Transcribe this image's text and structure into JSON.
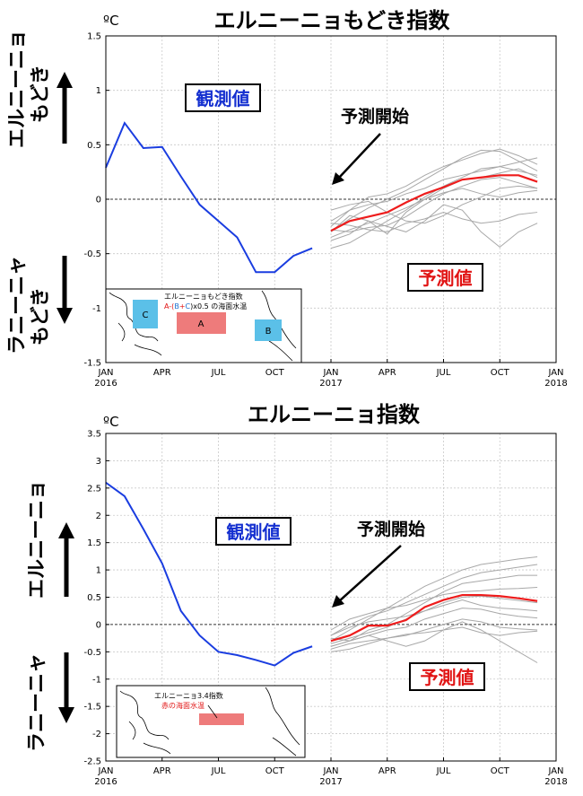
{
  "chart_data": [
    {
      "type": "line",
      "title": "エルニーニョもどき指数",
      "unit": "ºC",
      "ylim": [
        -1.5,
        1.5
      ],
      "yticks": [
        "1.5",
        "1",
        "0.5",
        "0",
        "-0.5",
        "-1",
        "-1.5"
      ],
      "ytick_values": [
        1.5,
        1,
        0.5,
        0,
        -0.5,
        -1,
        -1.5
      ],
      "xlim": [
        0,
        24
      ],
      "xtick_labels": [
        "JAN",
        "APR",
        "JUL",
        "OCT",
        "JAN",
        "APR",
        "JUL",
        "OCT",
        "JAN"
      ],
      "year_labels": [
        "2016",
        "2017",
        "2018"
      ],
      "side_label_top": "エルニーニョ\nもどき",
      "side_label_bottom": "ラニーニャ\nもどき",
      "obs_label": "観測値",
      "forecast_label": "予測値",
      "start_label": "予測開始",
      "grid": true,
      "observed": {
        "x": [
          0,
          1,
          2,
          3,
          4,
          5,
          6,
          7,
          8,
          9,
          10,
          11
        ],
        "y": [
          0.29,
          0.7,
          0.47,
          0.48,
          0.21,
          -0.05,
          -0.2,
          -0.35,
          -0.67,
          -0.67,
          -0.52,
          -0.45
        ],
        "color": "#1a3de0"
      },
      "forecast_mean": {
        "x": [
          12,
          13,
          14,
          15,
          16,
          17,
          18,
          19,
          20,
          21,
          22,
          23
        ],
        "y": [
          -0.29,
          -0.2,
          -0.16,
          -0.12,
          -0.03,
          0.05,
          0.11,
          0.18,
          0.2,
          0.22,
          0.22,
          0.16
        ],
        "color": "#ee1c1c"
      },
      "members": [
        [
          -0.3,
          -0.18,
          -0.08,
          0.0,
          0.08,
          0.18,
          0.28,
          0.38,
          0.45,
          0.44,
          0.35,
          0.26
        ],
        [
          -0.25,
          -0.1,
          0.02,
          0.05,
          0.12,
          0.22,
          0.3,
          0.36,
          0.42,
          0.46,
          0.4,
          0.32
        ],
        [
          -0.35,
          -0.28,
          -0.22,
          -0.15,
          -0.08,
          0.0,
          0.1,
          0.18,
          0.2,
          0.24,
          0.28,
          0.2
        ],
        [
          -0.2,
          -0.1,
          -0.05,
          -0.02,
          0.05,
          0.1,
          0.18,
          0.22,
          0.26,
          0.3,
          0.34,
          0.38
        ],
        [
          -0.28,
          -0.3,
          -0.26,
          -0.24,
          -0.16,
          -0.05,
          0.05,
          0.12,
          0.18,
          0.2,
          0.15,
          0.1
        ],
        [
          -0.1,
          -0.05,
          -0.02,
          -0.12,
          -0.2,
          -0.22,
          -0.15,
          -0.05,
          0.02,
          0.1,
          0.12,
          0.1
        ],
        [
          -0.38,
          -0.32,
          -0.2,
          -0.25,
          -0.3,
          -0.2,
          -0.05,
          -0.1,
          -0.3,
          -0.44,
          -0.3,
          -0.22
        ],
        [
          -0.3,
          -0.15,
          -0.2,
          -0.32,
          -0.12,
          0.0,
          0.06,
          0.1,
          0.05,
          0.02,
          0.06,
          0.08
        ],
        [
          -0.45,
          -0.4,
          -0.3,
          -0.2,
          -0.1,
          0.02,
          0.12,
          0.2,
          0.28,
          0.3,
          0.26,
          0.22
        ],
        [
          -0.22,
          -0.24,
          -0.28,
          -0.3,
          -0.22,
          -0.18,
          -0.12,
          -0.18,
          -0.22,
          -0.2,
          -0.14,
          -0.12
        ]
      ],
      "inset": {
        "title": "エルニーニョもどき指数",
        "formula_parts": [
          "A-(",
          "B",
          "+",
          "C",
          ")x0.5 の海面水温"
        ],
        "boxes": [
          "A",
          "B",
          "C"
        ]
      }
    },
    {
      "type": "line",
      "title": "エルニーニョ指数",
      "unit": "ºC",
      "ylim": [
        -2.5,
        3.5
      ],
      "yticks": [
        "3.5",
        "3",
        "2.5",
        "2",
        "1.5",
        "1",
        "0.5",
        "0",
        "-0.5",
        "-1",
        "-1.5",
        "-2",
        "-2.5"
      ],
      "ytick_values": [
        3.5,
        3,
        2.5,
        2,
        1.5,
        1,
        0.5,
        0,
        -0.5,
        -1,
        -1.5,
        -2,
        -2.5
      ],
      "xlim": [
        0,
        24
      ],
      "xtick_labels": [
        "JAN",
        "APR",
        "JUL",
        "OCT",
        "JAN",
        "APR",
        "JUL",
        "OCT",
        "JAN"
      ],
      "year_labels": [
        "2016",
        "2017",
        "2018"
      ],
      "side_label_top": "エルニーニョ",
      "side_label_bottom": "ラニーニャ",
      "obs_label": "観測値",
      "forecast_label": "予測値",
      "start_label": "予測開始",
      "grid": true,
      "observed": {
        "x": [
          0,
          1,
          2,
          3,
          4,
          5,
          6,
          7,
          8,
          9,
          10,
          11
        ],
        "y": [
          2.6,
          2.35,
          1.75,
          1.12,
          0.25,
          -0.2,
          -0.5,
          -0.56,
          -0.65,
          -0.75,
          -0.52,
          -0.4
        ],
        "color": "#1a3de0"
      },
      "forecast_mean": {
        "x": [
          12,
          13,
          14,
          15,
          16,
          17,
          18,
          19,
          20,
          21,
          22,
          23
        ],
        "y": [
          -0.3,
          -0.2,
          -0.02,
          -0.02,
          0.08,
          0.32,
          0.45,
          0.54,
          0.54,
          0.52,
          0.48,
          0.43
        ],
        "color": "#ee1c1c"
      },
      "members": [
        [
          -0.3,
          -0.1,
          0.1,
          0.3,
          0.5,
          0.7,
          0.85,
          1.0,
          1.1,
          1.15,
          1.2,
          1.24
        ],
        [
          -0.2,
          0.0,
          0.15,
          0.25,
          0.4,
          0.55,
          0.7,
          0.85,
          0.95,
          1.0,
          1.05,
          1.1
        ],
        [
          -0.4,
          -0.3,
          -0.1,
          0.0,
          0.2,
          0.4,
          0.6,
          0.75,
          0.8,
          0.85,
          0.9,
          0.9
        ],
        [
          -0.1,
          0.1,
          0.2,
          0.3,
          0.35,
          0.45,
          0.55,
          0.6,
          0.62,
          0.65,
          0.66,
          0.68
        ],
        [
          -0.35,
          -0.25,
          -0.15,
          -0.05,
          0.1,
          0.25,
          0.4,
          0.5,
          0.52,
          0.48,
          0.44,
          0.4
        ],
        [
          -0.25,
          -0.3,
          -0.2,
          -0.1,
          -0.05,
          0.1,
          0.2,
          0.3,
          0.28,
          0.2,
          0.15,
          0.12
        ],
        [
          -0.5,
          -0.45,
          -0.35,
          -0.25,
          -0.2,
          -0.1,
          0.0,
          0.1,
          0.05,
          -0.05,
          -0.08,
          -0.1
        ],
        [
          -0.4,
          -0.3,
          -0.2,
          -0.3,
          -0.4,
          -0.3,
          -0.1,
          0.05,
          -0.1,
          -0.3,
          -0.5,
          -0.7
        ],
        [
          -0.2,
          -0.05,
          0.05,
          0.1,
          0.15,
          0.25,
          0.35,
          0.45,
          0.35,
          0.3,
          0.28,
          0.25
        ],
        [
          -0.45,
          -0.35,
          -0.3,
          -0.25,
          -0.18,
          -0.15,
          -0.1,
          -0.05,
          -0.15,
          -0.2,
          -0.15,
          -0.12
        ]
      ],
      "inset": {
        "title": "エルニーニョ3.4指数",
        "subtitle": "赤の海面水温",
        "boxes": []
      }
    }
  ]
}
